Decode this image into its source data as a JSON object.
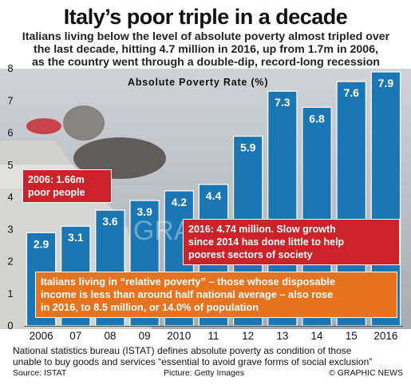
{
  "header": {
    "title": "Italy’s poor triple in a decade",
    "subtitle_lines": [
      "Italians living below the level of absolute poverty almost tripled over",
      "the last decade, hitting 4.7 million in 2016, up from 1.7m in 2006,",
      "as the country went through a double-dip, record-long recession"
    ]
  },
  "chart_data": {
    "type": "bar",
    "title": "Absolute Poverty Rate (%)",
    "categories": [
      "2006",
      "07",
      "08",
      "09",
      "2010",
      "11",
      "12",
      "13",
      "14",
      "15",
      "2016"
    ],
    "values": [
      2.9,
      3.1,
      3.6,
      3.9,
      4.2,
      4.4,
      5.9,
      7.3,
      6.8,
      7.6,
      7.9
    ],
    "value_labels": [
      "2.9",
      "3.1",
      "3.6",
      "3.9",
      "4.2",
      "4.4",
      "5.9",
      "7.3",
      "6.8",
      "7.6",
      "7.9"
    ],
    "ylim": [
      0,
      8
    ],
    "yticks": [
      0,
      1,
      2,
      3,
      4,
      5,
      6,
      7,
      8
    ],
    "grid": false,
    "bar_color": "#1a77b4",
    "annotations": [
      "2006: 1.66m poor people",
      "2016: 4.74 million. Slow growth since 2014 has done little to help poorest sectors of society",
      "Italians living in “relative poverty” – those whose disposable income is less than around half national average – also rose in 2016, to 8.5 million, or 14.0% of population"
    ]
  },
  "callouts": {
    "red1_lines": [
      "2006: 1.66m",
      "poor people"
    ],
    "red2_lines": [
      "2016: 4.74 million. Slow growth",
      "since 2014 has done little to help",
      "poorest sectors of society"
    ],
    "orange_lines": [
      "Italians living in “relative poverty” – those whose disposable",
      "income is less than around half national average – also rose",
      "in 2016, to 8.5 million, or 14.0% of population"
    ]
  },
  "footer": {
    "note_lines": [
      "National statistics bureau (ISTAT) defines absolute poverty as condition of those",
      "unable to buy goods and services “essential to avoid grave forms of social exclusion”"
    ],
    "source": "Source: ISTAT",
    "picture": "Picture: Getty Images",
    "brand": "© GRAPHIC NEWS"
  },
  "watermark": "GRAPHIC NEWS",
  "colors": {
    "bar": "#1a77b4",
    "red_callout": "#cc2229",
    "orange_callout": "#e8731e",
    "background": "#b9bec3"
  }
}
